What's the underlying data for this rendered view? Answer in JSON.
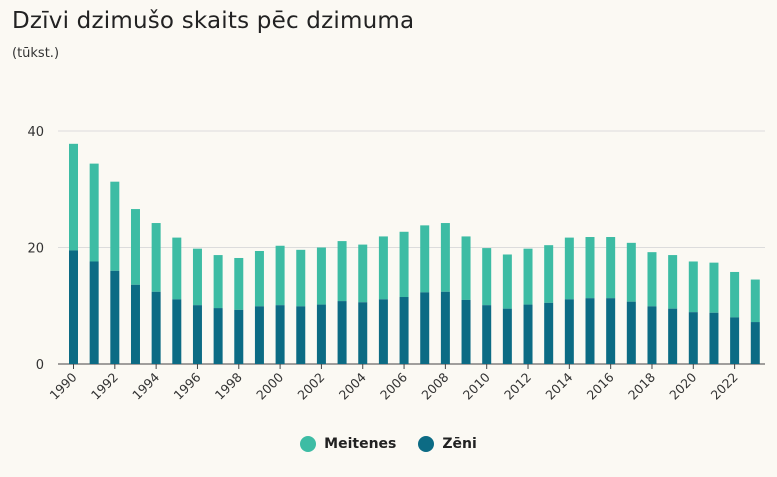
{
  "title": "Dzīvi dzimušo skaits pēc dzimuma",
  "subtitle": "(tūkst.)",
  "colors": {
    "meitenes": "#3dbca4",
    "zeni": "#0c6b84",
    "grid": "#dcdcdc",
    "axis": "#444444"
  },
  "legend": [
    {
      "name": "Meitenes",
      "color": "#3dbca4"
    },
    {
      "name": "Zēni",
      "color": "#0c6b84"
    }
  ],
  "chart_data": {
    "type": "bar",
    "stacked": true,
    "categories": [
      "1990",
      "1991",
      "1992",
      "1993",
      "1994",
      "1995",
      "1996",
      "1997",
      "1998",
      "1999",
      "2000",
      "2001",
      "2002",
      "2003",
      "2004",
      "2005",
      "2006",
      "2007",
      "2008",
      "2009",
      "2010",
      "2011",
      "2012",
      "2013",
      "2014",
      "2015",
      "2016",
      "2017",
      "2018",
      "2019",
      "2020",
      "2021",
      "2022",
      "2023"
    ],
    "series": [
      {
        "name": "Zēni",
        "values": [
          19.5,
          17.6,
          16.0,
          13.6,
          12.4,
          11.1,
          10.1,
          9.6,
          9.3,
          9.9,
          10.1,
          9.9,
          10.2,
          10.8,
          10.6,
          11.1,
          11.5,
          12.3,
          12.4,
          11.0,
          10.1,
          9.5,
          10.2,
          10.5,
          11.1,
          11.3,
          11.3,
          10.7,
          9.9,
          9.5,
          8.9,
          8.8,
          8.0,
          7.2
        ]
      },
      {
        "name": "Meitenes",
        "values": [
          18.3,
          16.8,
          15.3,
          13.0,
          11.8,
          10.6,
          9.7,
          9.1,
          8.9,
          9.5,
          10.2,
          9.7,
          9.8,
          10.3,
          9.9,
          10.8,
          11.2,
          11.5,
          11.8,
          10.9,
          9.8,
          9.3,
          9.6,
          9.9,
          10.6,
          10.5,
          10.5,
          10.1,
          9.3,
          9.2,
          8.7,
          8.6,
          7.8,
          7.3
        ]
      }
    ],
    "yticks": [
      0,
      20,
      40
    ],
    "xticks": [
      "1990",
      "1992",
      "1994",
      "1996",
      "1998",
      "2000",
      "2002",
      "2004",
      "2006",
      "2008",
      "2010",
      "2012",
      "2014",
      "2016",
      "2018",
      "2020",
      "2022"
    ],
    "ylim": [
      0,
      40
    ],
    "grid": true,
    "legend_position": "bottom-center"
  }
}
